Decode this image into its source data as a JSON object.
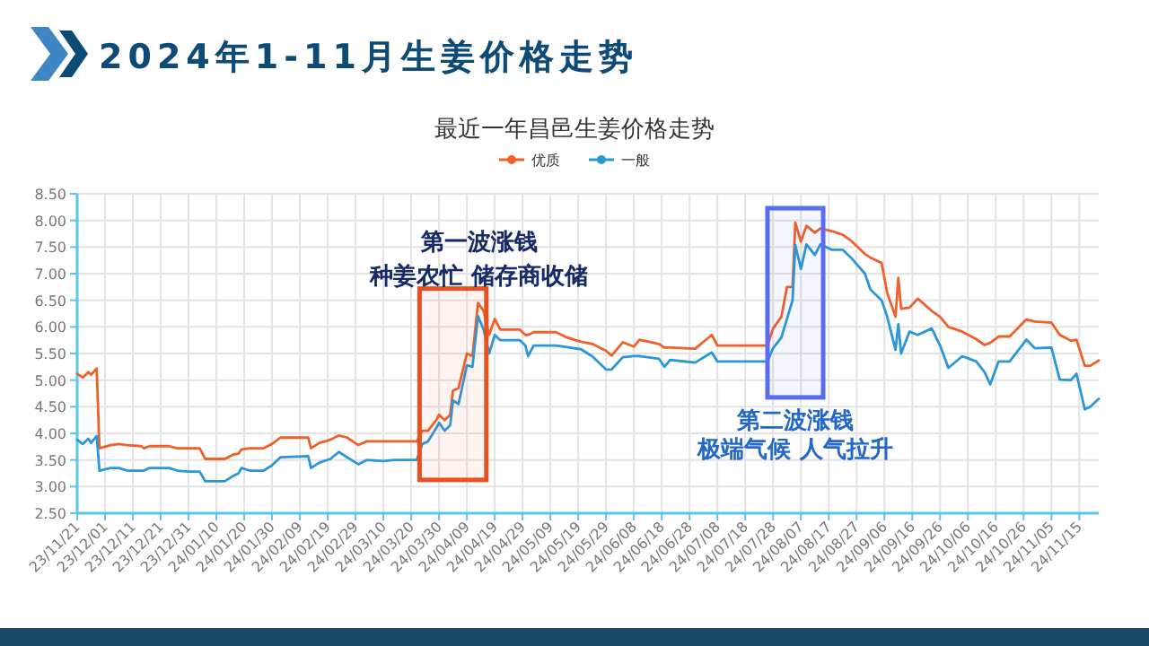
{
  "chart_data": {
    "type": "line",
    "title": "2024年1-11月生姜价格走势",
    "subtitle": "最近一年昌邑生姜价格走势",
    "x": [
      "2023-11-21",
      "2023-11-23",
      "2023-11-25",
      "2023-11-26",
      "2023-11-28",
      "2023-11-29",
      "2023-12-03",
      "2023-12-06",
      "2023-12-09",
      "2023-12-14",
      "2023-12-15",
      "2023-12-17",
      "2023-12-24",
      "2023-12-27",
      "2023-12-31",
      "2024-01-04",
      "2024-01-06",
      "2024-01-13",
      "2024-01-16",
      "2024-01-18",
      "2024-01-19",
      "2024-01-22",
      "2024-01-27",
      "2024-01-30",
      "2024-02-02",
      "2024-02-12",
      "2024-02-13",
      "2024-02-16",
      "2024-02-20",
      "2024-02-23",
      "2024-02-26",
      "2024-03-01",
      "2024-03-04",
      "2024-03-10",
      "2024-03-14",
      "2024-03-22",
      "2024-03-24",
      "2024-03-26",
      "2024-03-29",
      "2024-03-30",
      "2024-04-01",
      "2024-04-03",
      "2024-04-04",
      "2024-04-06",
      "2024-04-09",
      "2024-04-11",
      "2024-04-13",
      "2024-04-15",
      "2024-04-17",
      "2024-04-19",
      "2024-04-21",
      "2024-04-28",
      "2024-04-30",
      "2024-05-01",
      "2024-05-03",
      "2024-05-11",
      "2024-05-15",
      "2024-05-20",
      "2024-05-24",
      "2024-05-29",
      "2024-05-31",
      "2024-06-04",
      "2024-06-08",
      "2024-06-10",
      "2024-06-17",
      "2024-06-19",
      "2024-06-21",
      "2024-06-30",
      "2024-07-06",
      "2024-07-08",
      "2024-07-26",
      "2024-07-28",
      "2024-07-31",
      "2024-08-02",
      "2024-08-04",
      "2024-08-05",
      "2024-08-07",
      "2024-08-09",
      "2024-08-12",
      "2024-08-14",
      "2024-08-18",
      "2024-08-22",
      "2024-08-25",
      "2024-08-30",
      "2024-09-01",
      "2024-09-05",
      "2024-09-07",
      "2024-09-10",
      "2024-09-11",
      "2024-09-12",
      "2024-09-15",
      "2024-09-18",
      "2024-09-23",
      "2024-09-26",
      "2024-09-29",
      "2024-10-04",
      "2024-10-09",
      "2024-10-12",
      "2024-10-14",
      "2024-10-17",
      "2024-10-21",
      "2024-10-27",
      "2024-10-30",
      "2024-11-05",
      "2024-11-08",
      "2024-11-12",
      "2024-11-14",
      "2024-11-17",
      "2024-11-19",
      "2024-11-22"
    ],
    "series": [
      {
        "name": "优质",
        "color": "#f0602a",
        "values": [
          5.12,
          5.05,
          5.15,
          5.1,
          5.22,
          3.72,
          3.78,
          3.8,
          3.78,
          3.76,
          3.72,
          3.76,
          3.76,
          3.72,
          3.72,
          3.72,
          3.52,
          3.52,
          3.6,
          3.62,
          3.7,
          3.72,
          3.72,
          3.8,
          3.92,
          3.92,
          3.72,
          3.82,
          3.88,
          3.96,
          3.92,
          3.78,
          3.85,
          3.85,
          3.85,
          3.85,
          4.05,
          4.05,
          4.25,
          4.35,
          4.25,
          4.35,
          4.8,
          4.85,
          5.5,
          5.45,
          6.45,
          6.3,
          5.85,
          6.15,
          5.95,
          5.95,
          5.85,
          5.85,
          5.9,
          5.9,
          5.8,
          5.72,
          5.68,
          5.55,
          5.46,
          5.71,
          5.63,
          5.76,
          5.68,
          5.61,
          5.61,
          5.59,
          5.85,
          5.65,
          5.65,
          5.97,
          6.19,
          6.75,
          6.75,
          7.96,
          7.6,
          7.9,
          7.77,
          7.85,
          7.8,
          7.73,
          7.62,
          7.37,
          7.3,
          7.2,
          6.64,
          6.19,
          6.92,
          6.34,
          6.36,
          6.53,
          6.3,
          6.19,
          6.0,
          5.91,
          5.77,
          5.66,
          5.7,
          5.82,
          5.82,
          6.14,
          6.1,
          6.08,
          5.85,
          5.74,
          5.76,
          5.27,
          5.27,
          5.37
        ]
      },
      {
        "name": "一般",
        "color": "#2b97d6",
        "values": [
          3.88,
          3.8,
          3.9,
          3.82,
          3.95,
          3.3,
          3.35,
          3.35,
          3.3,
          3.3,
          3.3,
          3.35,
          3.35,
          3.3,
          3.28,
          3.28,
          3.1,
          3.1,
          3.2,
          3.25,
          3.35,
          3.3,
          3.3,
          3.4,
          3.55,
          3.57,
          3.35,
          3.45,
          3.52,
          3.65,
          3.55,
          3.42,
          3.5,
          3.48,
          3.5,
          3.5,
          3.8,
          3.85,
          4.1,
          4.2,
          4.05,
          4.15,
          4.62,
          4.55,
          5.28,
          5.25,
          6.2,
          5.95,
          5.5,
          5.85,
          5.75,
          5.75,
          5.65,
          5.45,
          5.65,
          5.65,
          5.62,
          5.58,
          5.45,
          5.2,
          5.2,
          5.43,
          5.45,
          5.45,
          5.4,
          5.25,
          5.38,
          5.33,
          5.52,
          5.35,
          5.35,
          5.6,
          5.8,
          6.15,
          6.5,
          7.54,
          7.09,
          7.55,
          7.35,
          7.55,
          7.45,
          7.45,
          7.3,
          7.0,
          6.7,
          6.5,
          6.19,
          5.57,
          6.05,
          5.5,
          5.91,
          5.85,
          5.97,
          5.65,
          5.23,
          5.45,
          5.35,
          5.15,
          4.92,
          5.35,
          5.35,
          5.76,
          5.6,
          5.61,
          5.01,
          5.0,
          5.12,
          4.45,
          4.5,
          4.65
        ]
      }
    ],
    "xlim": [
      "2023-11-21",
      "2024-11-22"
    ],
    "xticks": [
      {
        "value": "2023-11-21",
        "label": "23/11/21"
      },
      {
        "value": "2023-12-01",
        "label": "23/12/01"
      },
      {
        "value": "2023-12-11",
        "label": "23/12/11"
      },
      {
        "value": "2023-12-21",
        "label": "23/12/21"
      },
      {
        "value": "2023-12-31",
        "label": "23/12/31"
      },
      {
        "value": "2024-01-10",
        "label": "24/01/10"
      },
      {
        "value": "2024-01-20",
        "label": "24/01/20"
      },
      {
        "value": "2024-01-30",
        "label": "24/01/30"
      },
      {
        "value": "2024-02-09",
        "label": "24/02/09"
      },
      {
        "value": "2024-02-19",
        "label": "24/02/19"
      },
      {
        "value": "2024-02-29",
        "label": "24/02/29"
      },
      {
        "value": "2024-03-10",
        "label": "24/03/10"
      },
      {
        "value": "2024-03-20",
        "label": "24/03/20"
      },
      {
        "value": "2024-03-30",
        "label": "24/03/30"
      },
      {
        "value": "2024-04-09",
        "label": "24/04/09"
      },
      {
        "value": "2024-04-19",
        "label": "24/04/19"
      },
      {
        "value": "2024-04-29",
        "label": "24/04/29"
      },
      {
        "value": "2024-05-09",
        "label": "24/05/09"
      },
      {
        "value": "2024-05-19",
        "label": "24/05/19"
      },
      {
        "value": "2024-05-29",
        "label": "24/05/29"
      },
      {
        "value": "2024-06-08",
        "label": "24/06/08"
      },
      {
        "value": "2024-06-18",
        "label": "24/06/18"
      },
      {
        "value": "2024-06-28",
        "label": "24/06/28"
      },
      {
        "value": "2024-07-08",
        "label": "24/07/08"
      },
      {
        "value": "2024-07-18",
        "label": "24/07/18"
      },
      {
        "value": "2024-07-28",
        "label": "24/07/28"
      },
      {
        "value": "2024-08-07",
        "label": "24/08/07"
      },
      {
        "value": "2024-08-17",
        "label": "24/08/17"
      },
      {
        "value": "2024-08-27",
        "label": "24/08/27"
      },
      {
        "value": "2024-09-06",
        "label": "24/09/06"
      },
      {
        "value": "2024-09-16",
        "label": "24/09/16"
      },
      {
        "value": "2024-09-26",
        "label": "24/09/26"
      },
      {
        "value": "2024-10-06",
        "label": "24/10/06"
      },
      {
        "value": "2024-10-16",
        "label": "24/10/16"
      },
      {
        "value": "2024-10-26",
        "label": "24/10/26"
      },
      {
        "value": "2024-11-05",
        "label": "24/11/05"
      },
      {
        "value": "2024-11-15",
        "label": "24/11/15"
      }
    ],
    "ylim": [
      2.5,
      8.5
    ],
    "yticks": [
      {
        "value": 2.5,
        "label": "2.50"
      },
      {
        "value": 3,
        "label": "3.00"
      },
      {
        "value": 3.5,
        "label": "3.50"
      },
      {
        "value": 4,
        "label": "4.00"
      },
      {
        "value": 4.5,
        "label": "4.50"
      },
      {
        "value": 5,
        "label": "5.00"
      },
      {
        "value": 5.5,
        "label": "5.50"
      },
      {
        "value": 6,
        "label": "6.00"
      },
      {
        "value": 6.5,
        "label": "6.50"
      },
      {
        "value": 7,
        "label": "7.00"
      },
      {
        "value": 7.5,
        "label": "7.50"
      },
      {
        "value": 8,
        "label": "8.00"
      },
      {
        "value": 8.5,
        "label": "8.50"
      }
    ],
    "bands": [
      {
        "axis": "x",
        "from": "2024-03-23",
        "to": "2024-04-16",
        "color": "#e8501f"
      },
      {
        "axis": "x",
        "from": "2024-07-26",
        "to": "2024-08-15",
        "color": "#5a6cf2"
      }
    ],
    "annotations": [
      "第一波涨钱",
      "种姜农忙 储存商收储",
      "第二波涨钱",
      "极端气候 人气拉升"
    ],
    "grid": true,
    "legend": "top",
    "marker": "none",
    "line_style": "solid"
  }
}
